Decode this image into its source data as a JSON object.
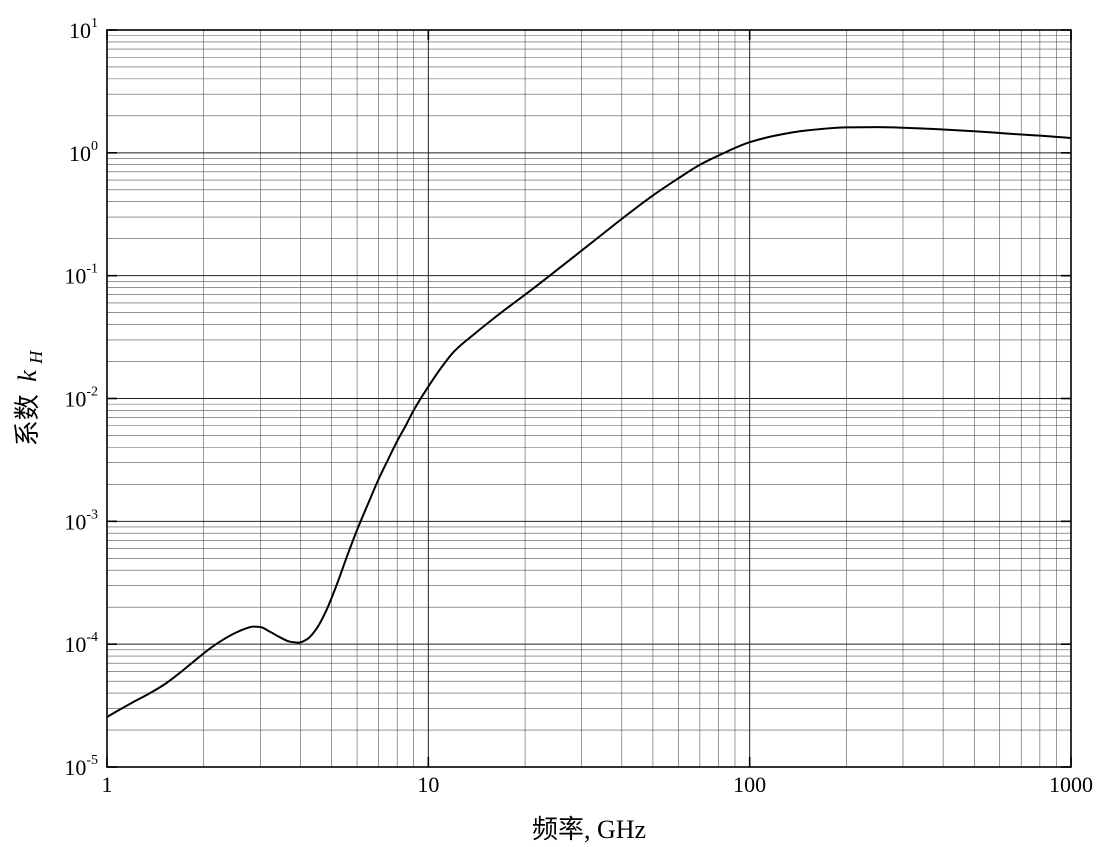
{
  "chart_data": {
    "type": "line",
    "title": "",
    "xlabel": "频率, GHz",
    "ylabel": {
      "prefix": "系数",
      "var": "k",
      "sub": "H"
    },
    "x_scale": "log",
    "y_scale": "log",
    "xlim": [
      1,
      1000
    ],
    "ylim": [
      1e-05,
      10
    ],
    "x_ticks": [
      {
        "value": 1,
        "label": "1"
      },
      {
        "value": 10,
        "label": "10"
      },
      {
        "value": 100,
        "label": "100"
      },
      {
        "value": 1000,
        "label": "1000"
      }
    ],
    "y_ticks": [
      {
        "value": 1e-05,
        "base": "10",
        "exp": "-5"
      },
      {
        "value": 0.0001,
        "base": "10",
        "exp": "-4"
      },
      {
        "value": 0.001,
        "base": "10",
        "exp": "-3"
      },
      {
        "value": 0.01,
        "base": "10",
        "exp": "-2"
      },
      {
        "value": 0.1,
        "base": "10",
        "exp": "-1"
      },
      {
        "value": 1,
        "base": "10",
        "exp": "0"
      },
      {
        "value": 10,
        "base": "10",
        "exp": "1"
      }
    ],
    "grid": true,
    "legend": "none",
    "series": [
      {
        "color": "#000000",
        "x": [
          1,
          1.1,
          1.2,
          1.35,
          1.5,
          1.7,
          1.9,
          2.1,
          2.3,
          2.5,
          2.7,
          2.85,
          3.0,
          3.2,
          3.45,
          3.7,
          3.95,
          4.2,
          4.5,
          4.8,
          5.2,
          5.6,
          6.0,
          6.5,
          7.0,
          7.5,
          8.0,
          8.5,
          9.0,
          10,
          11,
          12,
          14,
          16,
          18,
          20,
          25,
          30,
          35,
          40,
          50,
          60,
          70,
          80,
          100,
          120,
          150,
          200,
          250,
          300,
          400,
          500,
          600,
          700,
          800,
          900,
          1000
        ],
        "y": [
          2.55e-05,
          2.95e-05,
          3.35e-05,
          3.95e-05,
          4.65e-05,
          5.95e-05,
          7.55e-05,
          9.3e-05,
          0.000109,
          0.000123,
          0.000134,
          0.000139,
          0.000138,
          0.000127,
          0.000114,
          0.000105,
          0.000103,
          0.00011,
          0.000135,
          0.000185,
          0.00031,
          0.00053,
          0.00085,
          0.0014,
          0.0022,
          0.0032,
          0.0045,
          0.006,
          0.008,
          0.0125,
          0.018,
          0.024,
          0.034,
          0.045,
          0.057,
          0.07,
          0.11,
          0.16,
          0.22,
          0.29,
          0.45,
          0.62,
          0.8,
          0.95,
          1.22,
          1.38,
          1.52,
          1.61,
          1.62,
          1.6,
          1.55,
          1.5,
          1.45,
          1.41,
          1.38,
          1.35,
          1.32
        ]
      }
    ]
  }
}
